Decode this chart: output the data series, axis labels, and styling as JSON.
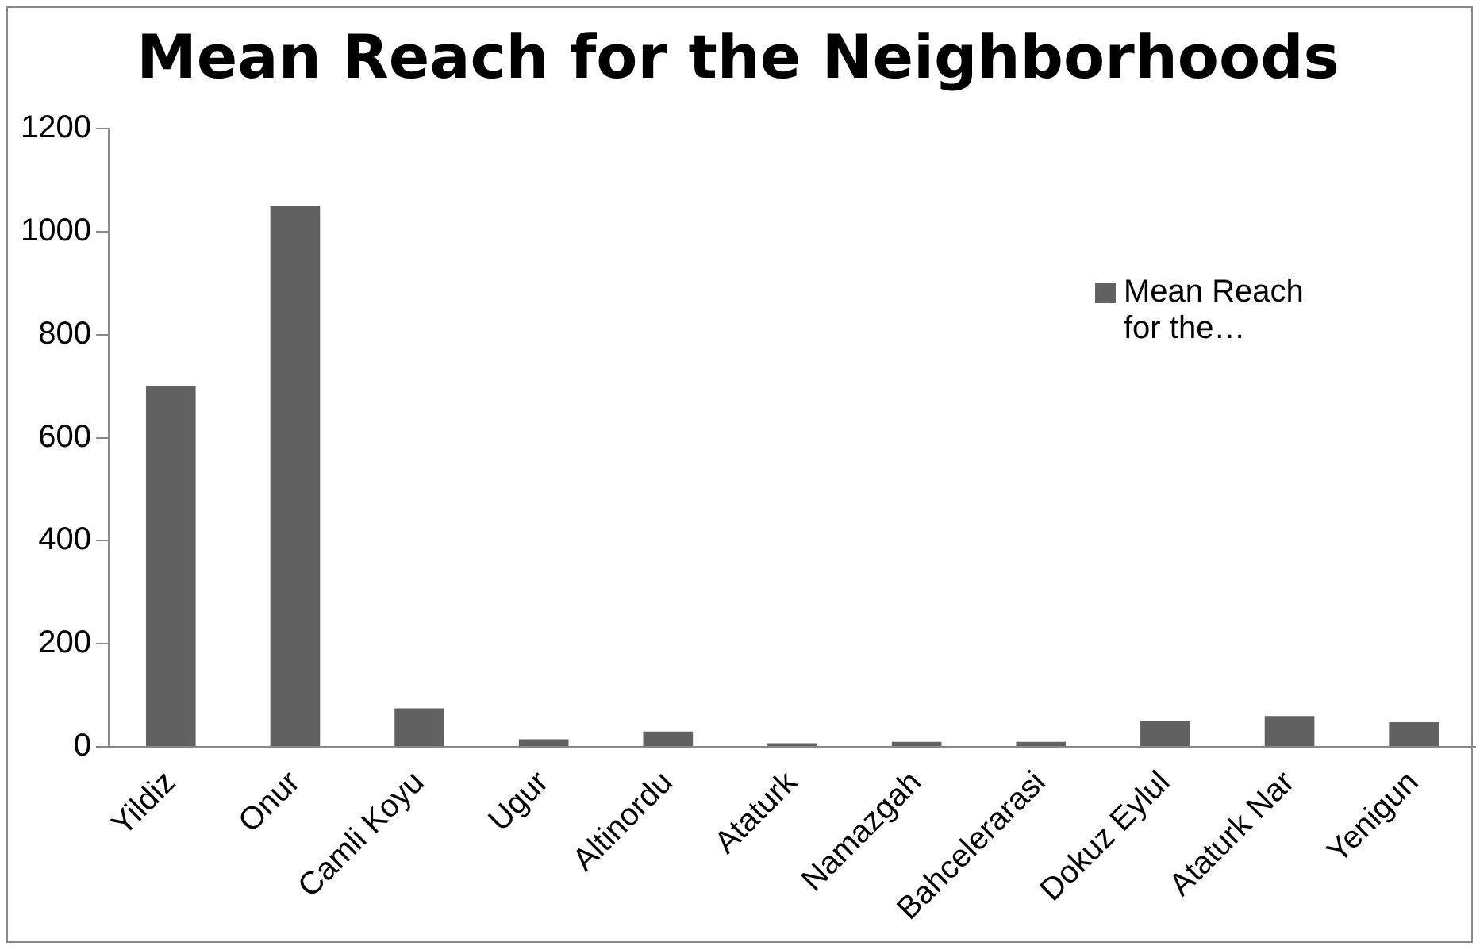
{
  "chart_data": {
    "type": "bar",
    "title": "Mean Reach for the Neighborhoods",
    "categories": [
      "Yildiz",
      "Onur",
      "Camli Koyu",
      "Ugur",
      "Altinordu",
      "Ataturk",
      "Namazgah",
      "Bahcelerarasi",
      "Dokuz Eylul",
      "Ataturk Nar",
      "Yenigun"
    ],
    "series": [
      {
        "name": "Mean Reach for the…",
        "color": "#616161",
        "values": [
          700,
          1050,
          75,
          15,
          30,
          7,
          10,
          10,
          50,
          60,
          48
        ]
      }
    ],
    "ylim": [
      0,
      1200
    ],
    "yticks": [
      0,
      200,
      400,
      600,
      800,
      1000,
      1200
    ],
    "grid": false,
    "legend": "top right"
  }
}
